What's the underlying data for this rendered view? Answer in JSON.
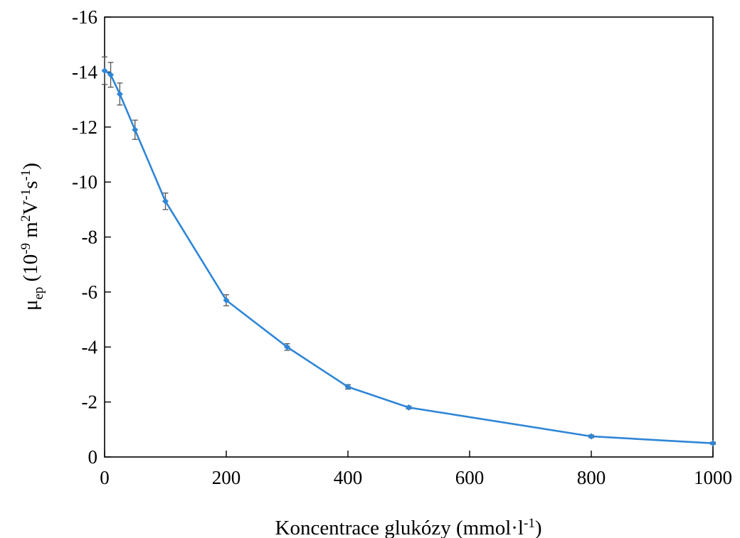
{
  "chart_data": {
    "type": "line",
    "title": "",
    "xlabel_main": "Koncentrace glukózy (mmol·l",
    "xlabel_sup": "-1",
    "xlabel_tail": ")",
    "ylabel_mu": "μ",
    "ylabel_sub": "ep",
    "ylabel_open": " (10",
    "ylabel_sup1": "-9",
    "ylabel_m": " m",
    "ylabel_sup2": "2",
    "ylabel_v": "V",
    "ylabel_sup3": "-1",
    "ylabel_s": "s",
    "ylabel_sup4": "-1",
    "ylabel_close": ")",
    "xlim": [
      0,
      1000
    ],
    "ylim": [
      0,
      -16
    ],
    "xticks": [
      0,
      200,
      400,
      600,
      800,
      1000
    ],
    "yticks": [
      0,
      -2,
      -4,
      -6,
      -8,
      -10,
      -12,
      -14,
      -16
    ],
    "xtick_labels": [
      "0",
      "200",
      "400",
      "600",
      "800",
      "1000"
    ],
    "ytick_labels": [
      "0",
      "-2",
      "-4",
      "-6",
      "-8",
      "-10",
      "-12",
      "-14",
      "-16"
    ],
    "grid": false,
    "line_color": "#2f86d6",
    "errorbar_color": "#555555",
    "series": [
      {
        "x": [
          0,
          10,
          25,
          50,
          100,
          200,
          300,
          400,
          500,
          800,
          1000
        ],
        "y": [
          -14.05,
          -13.9,
          -13.2,
          -11.9,
          -9.3,
          -5.7,
          -4.0,
          -2.55,
          -1.8,
          -0.75,
          -0.5
        ],
        "error": [
          0.5,
          0.45,
          0.4,
          0.35,
          0.3,
          0.2,
          0.12,
          0.08,
          0.05,
          0.05,
          0.04
        ]
      }
    ]
  }
}
